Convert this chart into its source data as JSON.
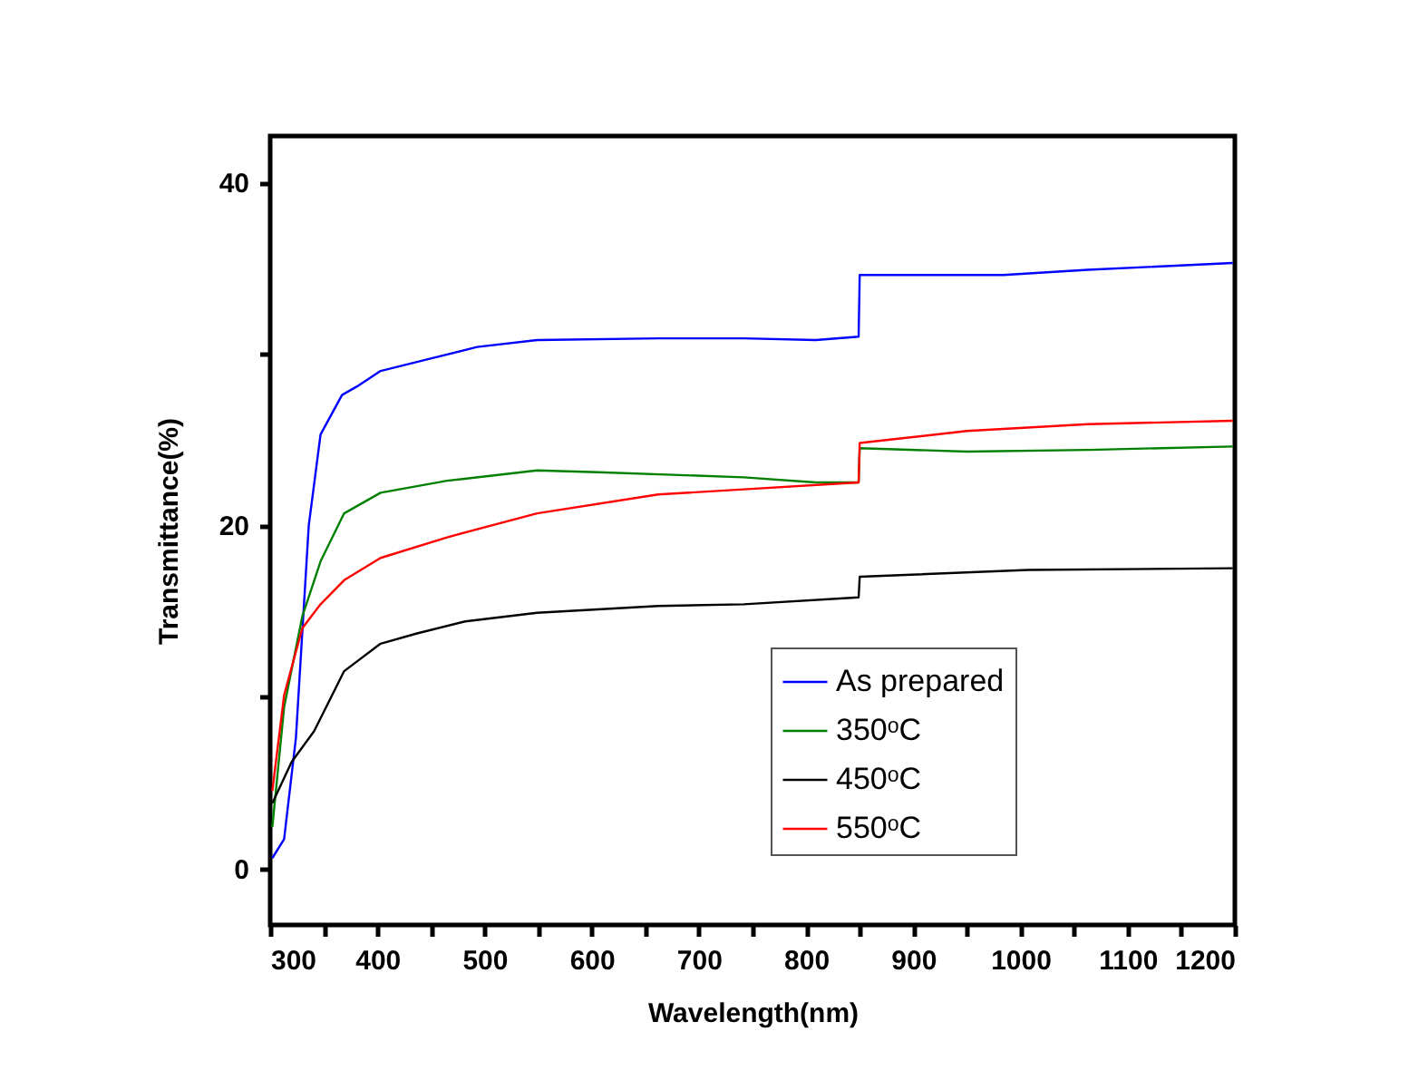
{
  "chart_data": {
    "type": "line",
    "xlabel": "Wavelength(nm)",
    "ylabel": "Transmittance(%)",
    "xlim": [
      300,
      1200
    ],
    "ylim": [
      -3.3,
      42.7
    ],
    "xticks": [
      300,
      {
        "value": 350,
        "label": null
      },
      400,
      {
        "value": 450,
        "label": null
      },
      500,
      {
        "value": 550,
        "label": null
      },
      600,
      {
        "value": 650,
        "label": null
      },
      700,
      {
        "value": 750,
        "label": null
      },
      800,
      {
        "value": 850,
        "label": null
      },
      900,
      {
        "value": 950,
        "label": null
      },
      1000,
      {
        "value": 1050,
        "label": null
      },
      1100,
      {
        "value": 1150,
        "label": null
      },
      1200
    ],
    "yticks": [
      0,
      {
        "value": 10,
        "label": null
      },
      20,
      {
        "value": 30,
        "label": null
      },
      40
    ],
    "grid": false,
    "legend": "bottom right",
    "marker": "none",
    "line_style": "solid",
    "series": [
      {
        "name": "As prepared",
        "color": "#0000ff",
        "x": [
          302,
          313,
          324,
          336,
          347,
          367,
          381,
          403,
          448,
          493,
          549,
          662,
          742,
          809,
          849,
          850,
          984,
          1063,
          1198
        ],
        "values": [
          0.6,
          1.7,
          7.6,
          20,
          25.3,
          27.6,
          28.1,
          29,
          29.7,
          30.4,
          30.8,
          30.9,
          30.9,
          30.8,
          31.0,
          34.6,
          34.6,
          34.9,
          35.3
        ]
      },
      {
        "name": "350ᵒC",
        "color": "#008000",
        "x": [
          302,
          313,
          330,
          347,
          369,
          403,
          465,
          549,
          606,
          742,
          809,
          849,
          850,
          950,
          1063,
          1198
        ],
        "values": [
          2.4,
          9.4,
          14.7,
          17.9,
          20.7,
          21.9,
          22.6,
          23.2,
          23.1,
          22.8,
          22.5,
          22.5,
          24.5,
          24.3,
          24.4,
          24.6
        ]
      },
      {
        "name": "450ᵒC",
        "color": "#000000",
        "x": [
          302,
          320,
          341,
          369,
          403,
          437,
          482,
          549,
          662,
          742,
          849,
          850,
          1007,
          1198
        ],
        "values": [
          3.8,
          6.2,
          8.0,
          11.5,
          13.1,
          13.7,
          14.4,
          14.9,
          15.3,
          15.4,
          15.8,
          17.0,
          17.4,
          17.5
        ]
      },
      {
        "name": "550ᵒC",
        "color": "#ff0000",
        "x": [
          302,
          313,
          330,
          347,
          369,
          403,
          465,
          549,
          662,
          742,
          849,
          850,
          950,
          1063,
          1198
        ],
        "values": [
          4.5,
          10.1,
          14.0,
          15.4,
          16.8,
          18.1,
          19.3,
          20.7,
          21.8,
          22.1,
          22.5,
          24.8,
          25.5,
          25.9,
          26.1
        ]
      }
    ]
  }
}
